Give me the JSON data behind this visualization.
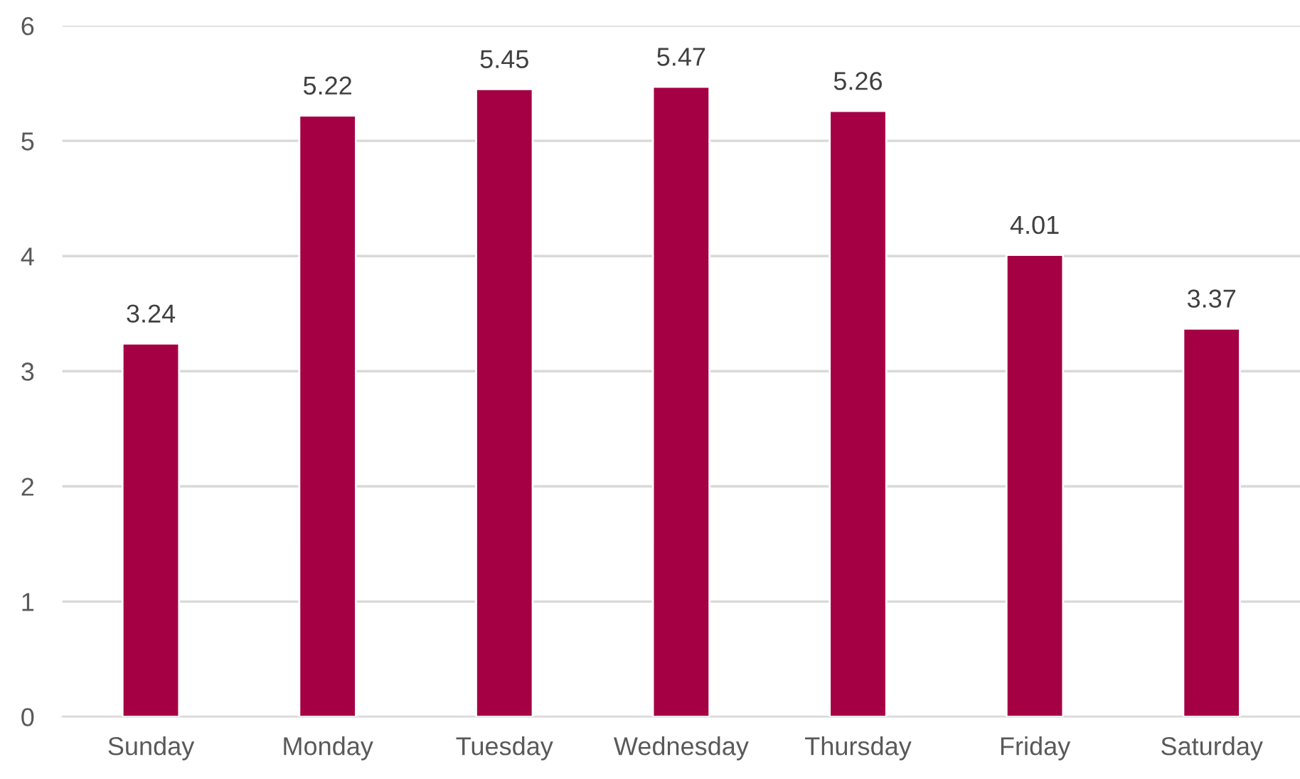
{
  "chart_data": {
    "type": "bar",
    "categories": [
      "Sunday",
      "Monday",
      "Tuesday",
      "Wednesday",
      "Thursday",
      "Friday",
      "Saturday"
    ],
    "values": [
      3.24,
      5.22,
      5.45,
      5.47,
      5.26,
      4.01,
      3.37
    ],
    "color": "#a50044",
    "ylim": [
      0,
      6
    ],
    "yticks": [
      0,
      1,
      2,
      3,
      4,
      5,
      6
    ],
    "grid": "y",
    "data_labels": true,
    "legend": false
  }
}
